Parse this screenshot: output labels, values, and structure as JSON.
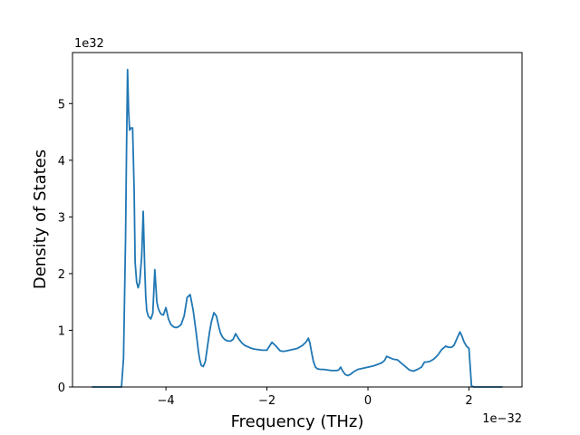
{
  "chart_data": {
    "type": "line",
    "title": "",
    "xlabel": "Frequency (THz)",
    "ylabel": "Density of States",
    "x_offset_text": "1e−32",
    "y_offset_text": "1e32",
    "xlim": [
      -5.85,
      3.05
    ],
    "ylim": [
      0,
      5.9
    ],
    "xticks": [
      -4,
      -2,
      0,
      2
    ],
    "xtick_labels": [
      "−4",
      "−2",
      "0",
      "2"
    ],
    "yticks": [
      0,
      1,
      2,
      3,
      4,
      5
    ],
    "ytick_labels": [
      "0",
      "1",
      "2",
      "3",
      "4",
      "5"
    ],
    "grid": false,
    "line_color": "#1f77b4",
    "series": [
      {
        "x": [
          -5.45,
          -4.98,
          -4.88,
          -4.84,
          -4.8,
          -4.78,
          -4.76,
          -4.74,
          -4.72,
          -4.69,
          -4.66,
          -4.63,
          -4.61,
          -4.58,
          -4.55,
          -4.52,
          -4.48,
          -4.45,
          -4.42,
          -4.4,
          -4.38,
          -4.35,
          -4.3,
          -4.26,
          -4.22,
          -4.18,
          -4.15,
          -4.12,
          -4.09,
          -4.05,
          -4.0,
          -3.95,
          -3.9,
          -3.85,
          -3.82,
          -3.78,
          -3.74,
          -3.7,
          -3.64,
          -3.58,
          -3.52,
          -3.46,
          -3.4,
          -3.36,
          -3.33,
          -3.3,
          -3.26,
          -3.22,
          -3.18,
          -3.14,
          -3.1,
          -3.05,
          -3.0,
          -2.95,
          -2.92,
          -2.88,
          -2.84,
          -2.8,
          -2.76,
          -2.72,
          -2.67,
          -2.62,
          -2.56,
          -2.5,
          -2.45,
          -2.41,
          -2.38,
          -2.33,
          -2.26,
          -2.18,
          -2.1,
          -2.0,
          -1.9,
          -1.82,
          -1.78,
          -1.74,
          -1.7,
          -1.66,
          -1.6,
          -1.5,
          -1.4,
          -1.3,
          -1.22,
          -1.18,
          -1.15,
          -1.12,
          -1.08,
          -1.04,
          -1.0,
          -0.94,
          -0.88,
          -0.8,
          -0.72,
          -0.66,
          -0.62,
          -0.58,
          -0.54,
          -0.5,
          -0.45,
          -0.4,
          -0.35,
          -0.28,
          -0.2,
          -0.1,
          0.0,
          0.1,
          0.2,
          0.28,
          0.33,
          0.37,
          0.42,
          0.5,
          0.58,
          0.66,
          0.74,
          0.82,
          0.9,
          0.98,
          1.06,
          1.12,
          1.16,
          1.22,
          1.3,
          1.38,
          1.46,
          1.54,
          1.6,
          1.65,
          1.7,
          1.76,
          1.82,
          1.86,
          1.9,
          1.95,
          2.0,
          2.05,
          2.1,
          2.2,
          2.4,
          2.65
        ],
        "y": [
          0.0,
          0.0,
          0.0,
          0.5,
          2.6,
          4.2,
          5.6,
          4.9,
          4.53,
          4.57,
          4.57,
          3.5,
          2.2,
          1.85,
          1.75,
          1.85,
          2.3,
          3.1,
          2.1,
          1.6,
          1.35,
          1.25,
          1.2,
          1.3,
          2.07,
          1.5,
          1.38,
          1.32,
          1.28,
          1.27,
          1.4,
          1.2,
          1.1,
          1.06,
          1.05,
          1.05,
          1.07,
          1.1,
          1.25,
          1.58,
          1.63,
          1.35,
          0.95,
          0.65,
          0.48,
          0.38,
          0.36,
          0.45,
          0.7,
          0.95,
          1.15,
          1.31,
          1.25,
          1.05,
          0.95,
          0.88,
          0.84,
          0.82,
          0.81,
          0.81,
          0.84,
          0.94,
          0.85,
          0.78,
          0.74,
          0.72,
          0.71,
          0.69,
          0.67,
          0.66,
          0.65,
          0.65,
          0.79,
          0.72,
          0.68,
          0.64,
          0.63,
          0.63,
          0.64,
          0.66,
          0.68,
          0.73,
          0.8,
          0.86,
          0.78,
          0.63,
          0.45,
          0.35,
          0.32,
          0.31,
          0.31,
          0.3,
          0.29,
          0.29,
          0.29,
          0.3,
          0.35,
          0.28,
          0.22,
          0.2,
          0.22,
          0.27,
          0.31,
          0.33,
          0.35,
          0.37,
          0.4,
          0.43,
          0.47,
          0.54,
          0.52,
          0.49,
          0.48,
          0.42,
          0.36,
          0.3,
          0.28,
          0.31,
          0.35,
          0.44,
          0.44,
          0.45,
          0.49,
          0.56,
          0.66,
          0.72,
          0.7,
          0.7,
          0.73,
          0.85,
          0.97,
          0.9,
          0.8,
          0.72,
          0.68,
          0.02,
          0.0,
          0.0,
          0.0,
          0.0
        ]
      }
    ]
  }
}
